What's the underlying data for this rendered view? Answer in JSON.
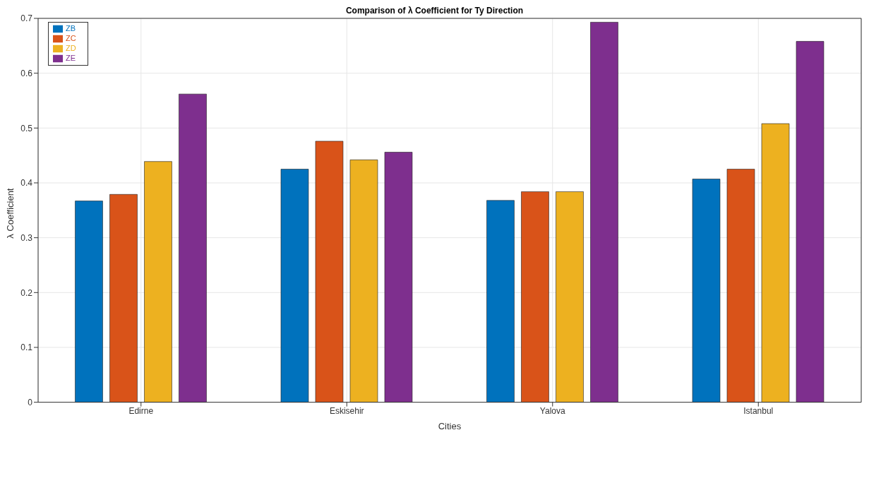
{
  "chart_data": {
    "type": "bar",
    "title": "Comparison of λ Coefficient for Ty Direction",
    "xlabel": "Cities",
    "ylabel": "λ Coefficient",
    "categories": [
      "Edirne",
      "Eskisehir",
      "Yalova",
      "Istanbul"
    ],
    "series": [
      {
        "name": "ZB",
        "color": "#0072bd",
        "values": [
          0.367,
          0.425,
          0.368,
          0.407
        ]
      },
      {
        "name": "ZC",
        "color": "#d95319",
        "values": [
          0.379,
          0.476,
          0.384,
          0.425
        ]
      },
      {
        "name": "ZD",
        "color": "#edb120",
        "values": [
          0.439,
          0.442,
          0.384,
          0.508
        ]
      },
      {
        "name": "ZE",
        "color": "#7e2f8e",
        "values": [
          0.562,
          0.456,
          0.693,
          0.658
        ]
      }
    ],
    "ylim": [
      0,
      0.7
    ],
    "yticks": [
      0,
      0.1,
      0.2,
      0.3,
      0.4,
      0.5,
      0.6,
      0.7
    ],
    "grid": true,
    "legend": "top left"
  }
}
